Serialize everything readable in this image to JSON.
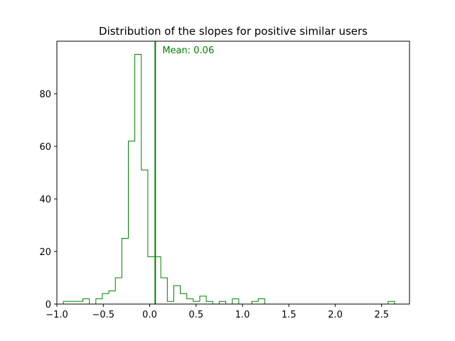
{
  "chart_data": {
    "type": "histogram",
    "title": "Distribution of the slopes for positive similar users",
    "xlabel": "",
    "ylabel": "",
    "xlim": [
      -1.0,
      2.8
    ],
    "ylim": [
      0,
      100
    ],
    "xticks": [
      -1.0,
      -0.5,
      0.0,
      0.5,
      1.0,
      1.5,
      2.0,
      2.5
    ],
    "xtick_labels": [
      "−1.0",
      "−0.5",
      "0.0",
      "0.5",
      "1.0",
      "1.5",
      "2.0",
      "2.5"
    ],
    "yticks": [
      0,
      20,
      40,
      60,
      80
    ],
    "ytick_labels": [
      "0",
      "20",
      "40",
      "60",
      "80"
    ],
    "grid": false,
    "histtype": "step",
    "color": "#008000",
    "bin_edges": [
      -0.93,
      -0.86,
      -0.79,
      -0.72,
      -0.65,
      -0.58,
      -0.51,
      -0.44,
      -0.37,
      -0.3,
      -0.23,
      -0.16,
      -0.09,
      -0.02,
      0.05,
      0.12,
      0.19,
      0.26,
      0.33,
      0.4,
      0.47,
      0.54,
      0.61,
      0.68,
      0.75,
      0.82,
      0.89,
      0.96,
      1.03,
      1.1,
      1.17,
      1.24,
      1.31,
      1.38,
      1.45,
      1.52,
      1.59,
      1.66,
      1.73,
      1.8,
      1.87,
      1.94,
      2.01,
      2.08,
      2.15,
      2.22,
      2.29,
      2.36,
      2.43,
      2.5,
      2.57,
      2.64
    ],
    "counts": [
      1,
      1,
      1,
      2,
      0,
      2,
      4,
      5,
      10,
      25,
      62,
      95,
      51,
      18,
      18,
      10,
      1,
      7,
      4,
      2,
      1,
      3,
      1,
      0,
      1,
      0,
      2,
      0,
      0,
      1,
      2,
      0,
      0,
      0,
      0,
      0,
      0,
      0,
      0,
      0,
      0,
      0,
      0,
      0,
      0,
      0,
      0,
      0,
      0,
      0,
      1
    ],
    "mean": {
      "value": 0.06,
      "label": "Mean: 0.06",
      "color": "#008000"
    }
  }
}
